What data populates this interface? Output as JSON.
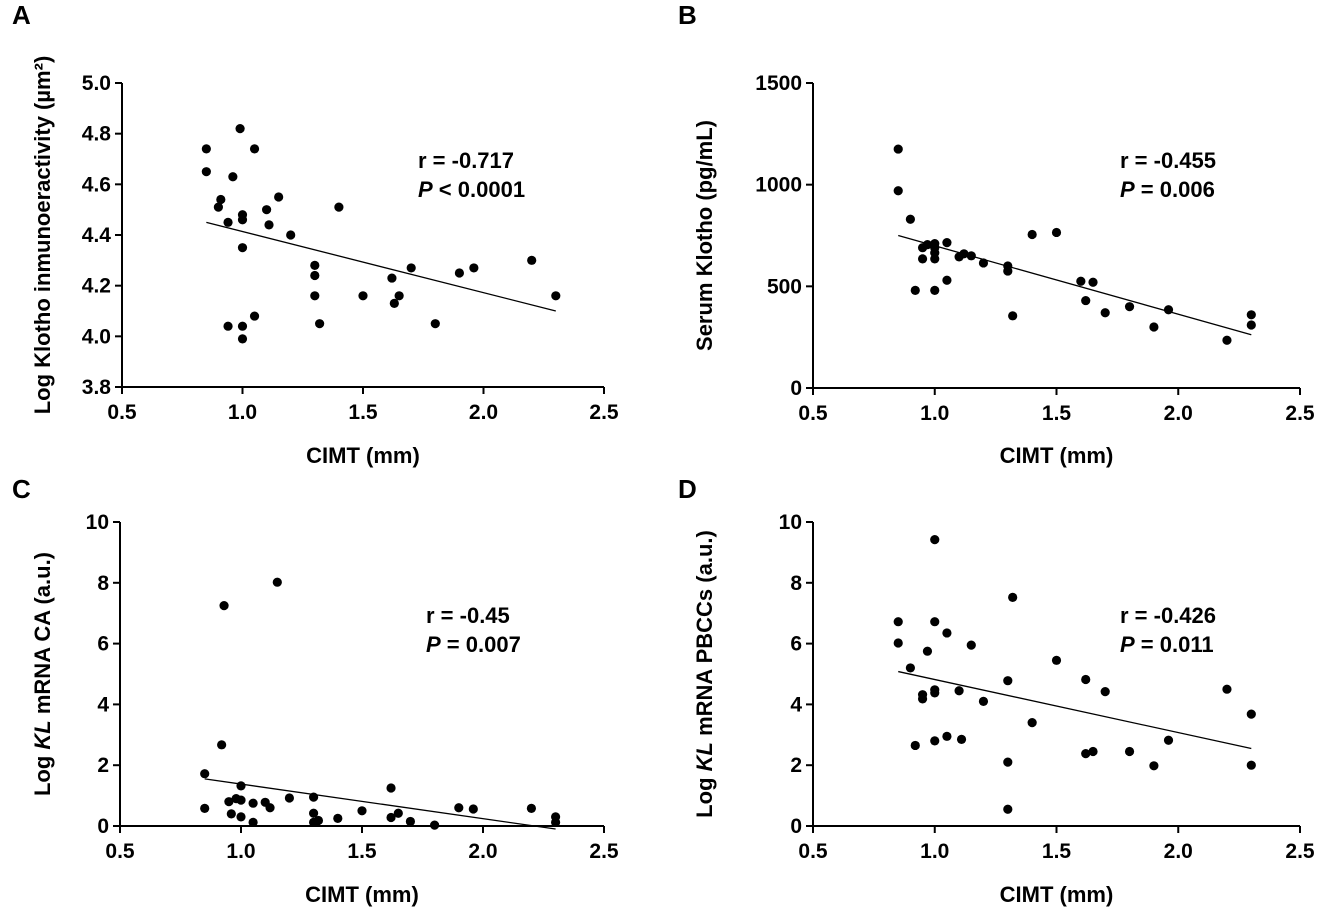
{
  "chart_data": [
    {
      "panel": "A",
      "type": "scatter",
      "xlabel": "CIMT (mm)",
      "ylabel": "Log Klotho inmunoeractivity (µm²)",
      "xlim": [
        0.5,
        2.5
      ],
      "ylim": [
        3.8,
        5.0
      ],
      "xticks": [
        0.5,
        1.0,
        1.5,
        2.0,
        2.5
      ],
      "yticks": [
        3.8,
        4.0,
        4.2,
        4.4,
        4.6,
        4.8,
        5.0
      ],
      "xtick_labels": [
        "0.5",
        "1.0",
        "1.5",
        "2.0",
        "2.5"
      ],
      "ytick_labels": [
        "3.8",
        "4.0",
        "4.2",
        "4.4",
        "4.6",
        "4.8",
        "5.0"
      ],
      "r_text": "r = -0.717",
      "p_label": "P",
      "p_value": " < 0.0001",
      "points": [
        [
          0.85,
          4.74
        ],
        [
          0.85,
          4.65
        ],
        [
          0.9,
          4.51
        ],
        [
          0.91,
          4.54
        ],
        [
          0.94,
          4.45
        ],
        [
          0.94,
          4.04
        ],
        [
          0.96,
          4.63
        ],
        [
          0.99,
          4.82
        ],
        [
          1.0,
          4.48
        ],
        [
          1.0,
          4.46
        ],
        [
          1.0,
          4.35
        ],
        [
          1.0,
          4.04
        ],
        [
          1.0,
          3.99
        ],
        [
          1.05,
          4.74
        ],
        [
          1.05,
          4.08
        ],
        [
          1.1,
          4.5
        ],
        [
          1.11,
          4.44
        ],
        [
          1.15,
          4.55
        ],
        [
          1.2,
          4.4
        ],
        [
          1.3,
          4.28
        ],
        [
          1.3,
          4.24
        ],
        [
          1.3,
          4.16
        ],
        [
          1.32,
          4.05
        ],
        [
          1.4,
          4.51
        ],
        [
          1.5,
          4.16
        ],
        [
          1.62,
          4.23
        ],
        [
          1.63,
          4.13
        ],
        [
          1.65,
          4.16
        ],
        [
          1.7,
          4.27
        ],
        [
          1.8,
          4.05
        ],
        [
          1.9,
          4.25
        ],
        [
          1.96,
          4.27
        ],
        [
          2.2,
          4.3
        ],
        [
          2.3,
          4.16
        ]
      ],
      "fit_line": [
        [
          0.85,
          4.45
        ],
        [
          2.3,
          4.1
        ]
      ]
    },
    {
      "panel": "B",
      "type": "scatter",
      "xlabel": "CIMT (mm)",
      "ylabel": "Serum Klotho (pg/mL)",
      "xlim": [
        0.5,
        2.5
      ],
      "ylim": [
        0,
        1500
      ],
      "xticks": [
        0.5,
        1.0,
        1.5,
        2.0,
        2.5
      ],
      "yticks": [
        0,
        500,
        1000,
        1500
      ],
      "xtick_labels": [
        "0.5",
        "1.0",
        "1.5",
        "2.0",
        "2.5"
      ],
      "ytick_labels": [
        "0",
        "500",
        "1000",
        "1500"
      ],
      "r_text": "r = -0.455",
      "p_label": "P",
      "p_value": " = 0.006",
      "points": [
        [
          0.85,
          1175
        ],
        [
          0.85,
          970
        ],
        [
          0.9,
          830
        ],
        [
          0.92,
          480
        ],
        [
          0.95,
          690
        ],
        [
          0.95,
          635
        ],
        [
          0.97,
          705
        ],
        [
          1.0,
          710
        ],
        [
          1.0,
          690
        ],
        [
          1.0,
          665
        ],
        [
          1.0,
          635
        ],
        [
          1.0,
          480
        ],
        [
          1.05,
          715
        ],
        [
          1.05,
          530
        ],
        [
          1.1,
          645
        ],
        [
          1.12,
          660
        ],
        [
          1.15,
          650
        ],
        [
          1.2,
          615
        ],
        [
          1.3,
          600
        ],
        [
          1.3,
          575
        ],
        [
          1.32,
          355
        ],
        [
          1.4,
          755
        ],
        [
          1.5,
          765
        ],
        [
          1.6,
          525
        ],
        [
          1.62,
          430
        ],
        [
          1.65,
          520
        ],
        [
          1.7,
          370
        ],
        [
          1.8,
          400
        ],
        [
          1.9,
          300
        ],
        [
          1.96,
          385
        ],
        [
          2.2,
          235
        ],
        [
          2.3,
          360
        ],
        [
          2.3,
          310
        ]
      ],
      "fit_line": [
        [
          0.85,
          750
        ],
        [
          2.3,
          262
        ]
      ]
    },
    {
      "panel": "C",
      "type": "scatter",
      "xlabel": "CIMT (mm)",
      "ylabel_prefix": "Log ",
      "ylabel_italic": "KL",
      "ylabel_suffix": " mRNA CA (a.u.)",
      "xlim": [
        0.5,
        2.5
      ],
      "ylim": [
        0,
        10
      ],
      "xticks": [
        0.5,
        1.0,
        1.5,
        2.0,
        2.5
      ],
      "yticks": [
        0,
        2,
        4,
        6,
        8,
        10
      ],
      "xtick_labels": [
        "0.5",
        "1.0",
        "1.5",
        "2.0",
        "2.5"
      ],
      "ytick_labels": [
        "0",
        "2",
        "4",
        "6",
        "8",
        "10"
      ],
      "r_text": "r = -0.45",
      "p_label": "P",
      "p_value": " = 0.007",
      "points": [
        [
          0.85,
          1.72
        ],
        [
          0.85,
          0.58
        ],
        [
          0.92,
          2.67
        ],
        [
          0.93,
          7.25
        ],
        [
          0.95,
          0.8
        ],
        [
          0.96,
          0.4
        ],
        [
          0.98,
          0.9
        ],
        [
          1.0,
          1.32
        ],
        [
          1.0,
          0.85
        ],
        [
          1.0,
          0.3
        ],
        [
          1.05,
          0.75
        ],
        [
          1.05,
          0.12
        ],
        [
          1.1,
          0.78
        ],
        [
          1.12,
          0.6
        ],
        [
          1.15,
          8.02
        ],
        [
          1.2,
          0.92
        ],
        [
          1.3,
          0.95
        ],
        [
          1.3,
          0.42
        ],
        [
          1.3,
          0.12
        ],
        [
          1.32,
          0.18
        ],
        [
          1.4,
          0.25
        ],
        [
          1.5,
          0.5
        ],
        [
          1.62,
          1.25
        ],
        [
          1.62,
          0.28
        ],
        [
          1.65,
          0.42
        ],
        [
          1.7,
          0.15
        ],
        [
          1.8,
          0.03
        ],
        [
          1.9,
          0.6
        ],
        [
          1.96,
          0.56
        ],
        [
          2.2,
          0.58
        ],
        [
          2.3,
          0.3
        ],
        [
          2.3,
          0.12
        ]
      ],
      "fit_line": [
        [
          0.85,
          1.55
        ],
        [
          2.3,
          -0.1
        ]
      ]
    },
    {
      "panel": "D",
      "type": "scatter",
      "xlabel": "CIMT (mm)",
      "ylabel_prefix": "Log ",
      "ylabel_italic": "KL",
      "ylabel_suffix": " mRNA PBCCs (a.u.)",
      "xlim": [
        0.5,
        2.5
      ],
      "ylim": [
        0,
        10
      ],
      "xticks": [
        0.5,
        1.0,
        1.5,
        2.0,
        2.5
      ],
      "yticks": [
        0,
        2,
        4,
        6,
        8,
        10
      ],
      "xtick_labels": [
        "0.5",
        "1.0",
        "1.5",
        "2.0",
        "2.5"
      ],
      "ytick_labels": [
        "0",
        "2",
        "4",
        "6",
        "8",
        "10"
      ],
      "r_text": "r = -0.426",
      "p_label": "P",
      "p_value": " = 0.011",
      "points": [
        [
          0.85,
          6.72
        ],
        [
          0.85,
          6.02
        ],
        [
          0.9,
          5.2
        ],
        [
          0.92,
          2.65
        ],
        [
          0.95,
          4.32
        ],
        [
          0.95,
          4.18
        ],
        [
          0.97,
          5.75
        ],
        [
          1.0,
          9.42
        ],
        [
          1.0,
          6.72
        ],
        [
          1.0,
          4.48
        ],
        [
          1.0,
          4.38
        ],
        [
          1.0,
          2.8
        ],
        [
          1.05,
          6.35
        ],
        [
          1.05,
          2.95
        ],
        [
          1.1,
          4.45
        ],
        [
          1.11,
          2.85
        ],
        [
          1.15,
          5.95
        ],
        [
          1.2,
          4.1
        ],
        [
          1.3,
          4.78
        ],
        [
          1.3,
          2.1
        ],
        [
          1.3,
          0.55
        ],
        [
          1.32,
          7.52
        ],
        [
          1.4,
          3.4
        ],
        [
          1.5,
          5.45
        ],
        [
          1.62,
          4.82
        ],
        [
          1.62,
          2.38
        ],
        [
          1.65,
          2.45
        ],
        [
          1.7,
          4.42
        ],
        [
          1.8,
          2.45
        ],
        [
          1.9,
          1.98
        ],
        [
          1.96,
          2.82
        ],
        [
          2.2,
          4.5
        ],
        [
          2.3,
          3.68
        ],
        [
          2.3,
          2.0
        ]
      ],
      "fit_line": [
        [
          0.85,
          5.08
        ],
        [
          2.3,
          2.55
        ]
      ]
    }
  ]
}
